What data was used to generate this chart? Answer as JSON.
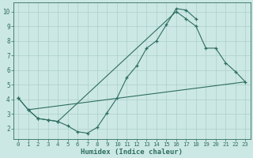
{
  "line1": {
    "x": [
      0,
      1,
      2,
      3,
      4,
      5,
      6,
      7,
      8,
      9,
      10,
      11,
      12,
      13,
      14,
      15,
      16,
      17,
      18
    ],
    "y": [
      4.1,
      3.3,
      2.7,
      2.6,
      2.5,
      2.2,
      1.8,
      1.7,
      2.1,
      3.1,
      4.1,
      5.5,
      6.3,
      7.5,
      8.0,
      9.1,
      10.2,
      10.1,
      9.5
    ]
  },
  "line2": {
    "x": [
      0,
      1,
      2,
      3,
      4,
      16,
      17,
      18,
      19,
      20,
      21,
      22,
      23
    ],
    "y": [
      4.1,
      3.3,
      2.7,
      2.6,
      2.5,
      10.0,
      9.5,
      9.0,
      7.5,
      7.5,
      6.5,
      5.9,
      5.2
    ]
  },
  "line3": {
    "x": [
      1,
      23
    ],
    "y": [
      3.3,
      5.2
    ]
  },
  "background_color": "#cce8e4",
  "grid_color": "#aacfcb",
  "line_color": "#2e6e61",
  "xlim": [
    -0.5,
    23.5
  ],
  "ylim": [
    1.3,
    10.6
  ],
  "xticks": [
    0,
    1,
    2,
    3,
    4,
    5,
    6,
    7,
    8,
    9,
    10,
    11,
    12,
    13,
    14,
    15,
    16,
    17,
    18,
    19,
    20,
    21,
    22,
    23
  ],
  "yticks": [
    2,
    3,
    4,
    5,
    6,
    7,
    8,
    9,
    10
  ],
  "xlabel": "Humidex (Indice chaleur)"
}
